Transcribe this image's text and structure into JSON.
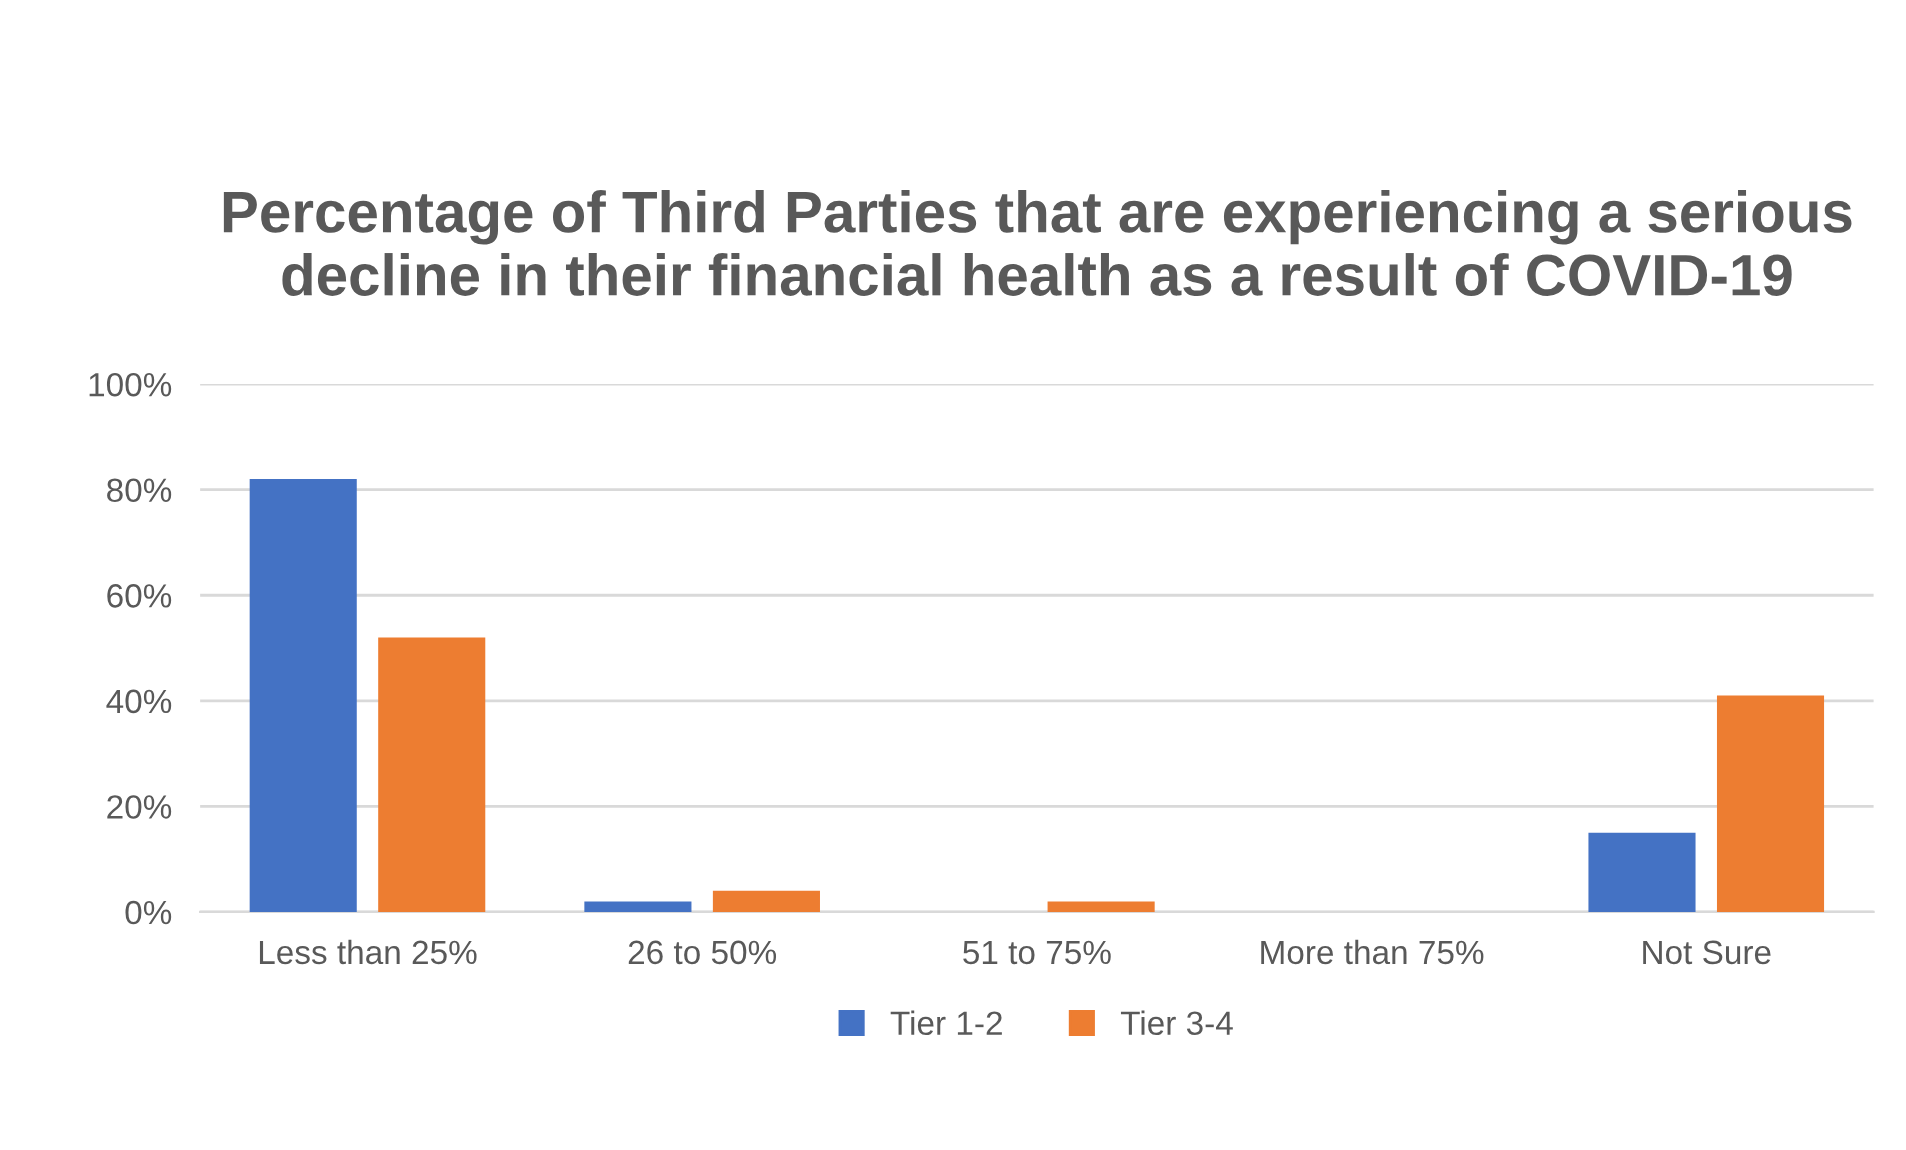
{
  "chart_data": {
    "type": "bar",
    "title": "Percentage of Third Parties that are experiencing a serious decline in their financial health as a result of COVID-19",
    "categories": [
      "Less than 25%",
      "26 to 50%",
      "51 to 75%",
      "More than 75%",
      "Not Sure"
    ],
    "series": [
      {
        "name": "Tier 1-2",
        "color": "#4472c4",
        "values": [
          82,
          2,
          0,
          0,
          15
        ]
      },
      {
        "name": "Tier 3-4",
        "color": "#ed7d31",
        "values": [
          52,
          4,
          2,
          0,
          41
        ]
      }
    ],
    "ylim": [
      0,
      100
    ],
    "yticks": [
      {
        "value": 0,
        "label": "0%"
      },
      {
        "value": 20,
        "label": "20%"
      },
      {
        "value": 40,
        "label": "40%"
      },
      {
        "value": 60,
        "label": "60%"
      },
      {
        "value": 80,
        "label": "80%"
      },
      {
        "value": 100,
        "label": "100%"
      }
    ],
    "grid": "y",
    "legend": "bottom"
  }
}
